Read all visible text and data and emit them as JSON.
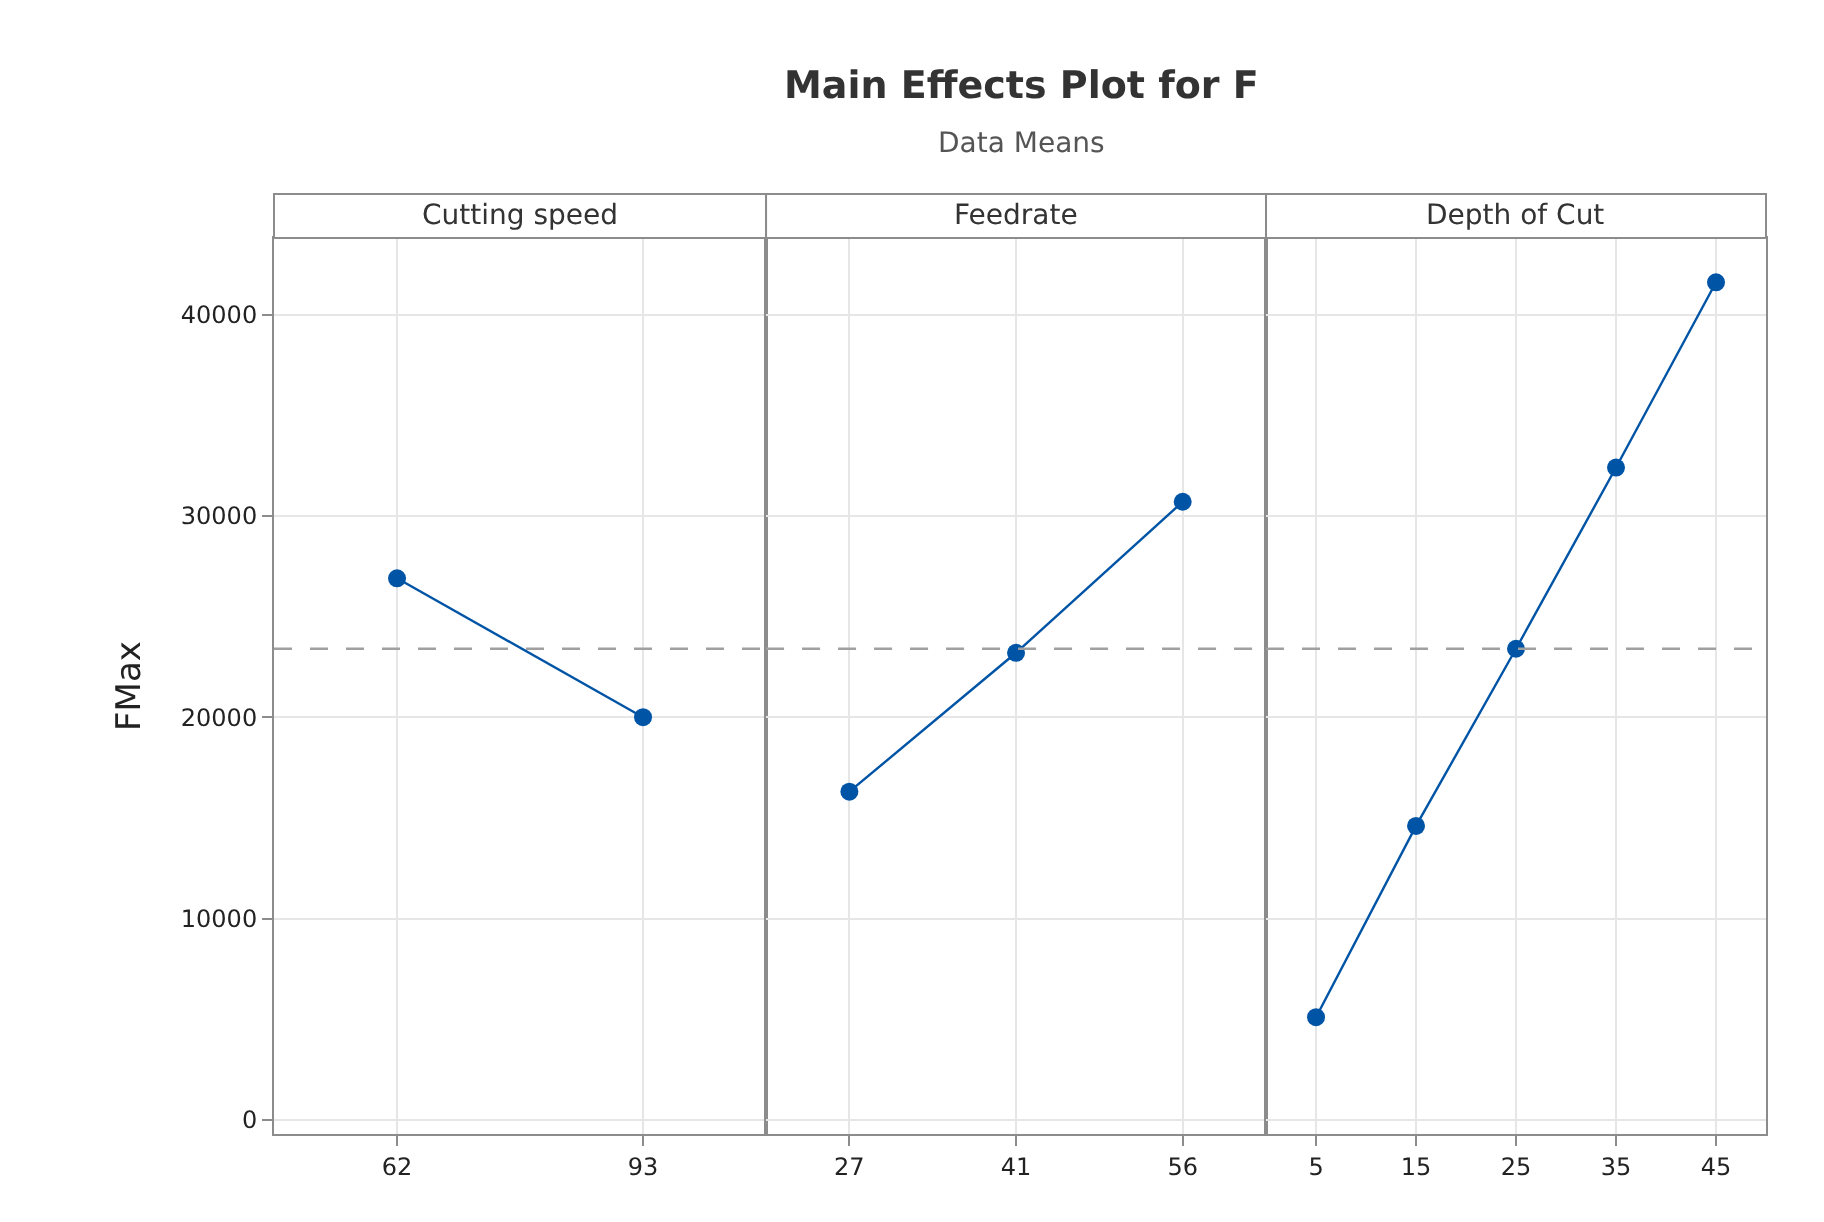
{
  "chart_data": [
    {
      "type": "other",
      "title": "Main Effects Plot for F",
      "subtitle": "Data Means"
    },
    {
      "type": "line",
      "ylabel": "FMax",
      "xlabel": "Cutting speed",
      "categories": [
        "62",
        "93"
      ],
      "values": [
        26900,
        20000
      ],
      "color": "#0054a6",
      "marker": "circle",
      "grid": true,
      "ylim": [
        -700,
        43800
      ],
      "yticks": [
        0,
        10000,
        20000,
        30000,
        40000
      ],
      "ref_lines": [
        {
          "axis": "y",
          "value": 23400,
          "color": "#a0a0a0",
          "line_style": "dashed"
        }
      ]
    },
    {
      "type": "line",
      "xlabel": "Feedrate",
      "categories": [
        "27",
        "41",
        "56"
      ],
      "values": [
        16300,
        23200,
        30700
      ],
      "color": "#0054a6",
      "marker": "circle",
      "grid": true,
      "ylim": [
        -700,
        43800
      ],
      "yticks": [
        0,
        10000,
        20000,
        30000,
        40000
      ],
      "tick_labels": "x",
      "ref_lines": [
        {
          "axis": "y",
          "value": 23400,
          "color": "#a0a0a0",
          "line_style": "dashed"
        }
      ]
    },
    {
      "type": "line",
      "xlabel": "Depth of Cut",
      "categories": [
        "5",
        "15",
        "25",
        "35",
        "45"
      ],
      "values": [
        5100,
        14600,
        23400,
        32400,
        41600
      ],
      "color": "#0054a6",
      "marker": "circle",
      "grid": true,
      "ylim": [
        -700,
        43800
      ],
      "yticks": [
        0,
        10000,
        20000,
        30000,
        40000
      ],
      "tick_labels": "x",
      "ref_lines": [
        {
          "axis": "y",
          "value": 23400,
          "color": "#a0a0a0",
          "line_style": "dashed"
        }
      ]
    }
  ]
}
